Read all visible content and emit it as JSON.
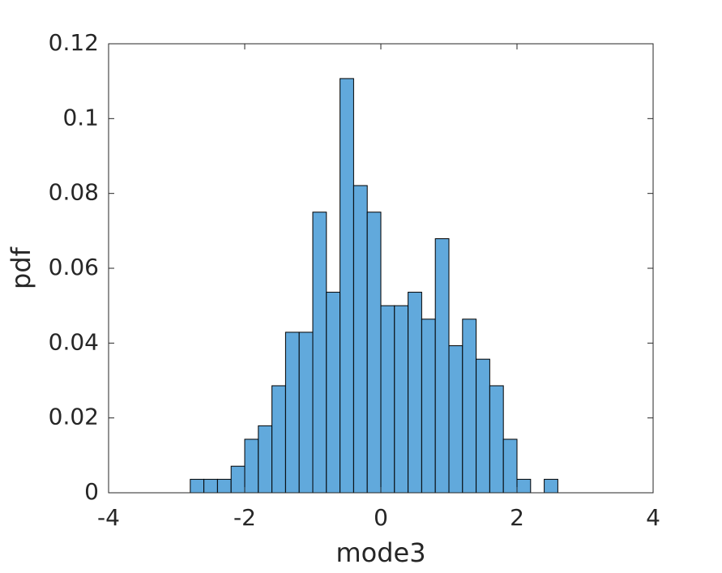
{
  "chart_data": {
    "type": "histogram",
    "xlabel": "mode3",
    "ylabel": "pdf",
    "bins": [
      -3.0,
      -2.8,
      -2.6,
      -2.4,
      -2.2,
      -2.0,
      -1.8,
      -1.6,
      -1.4,
      -1.2,
      -1.0,
      -0.8,
      -0.6,
      -0.4,
      -0.2,
      0.0,
      0.2,
      0.4,
      0.6,
      0.8,
      1.0,
      1.2,
      1.4,
      1.6,
      1.8,
      2.0,
      2.2,
      2.4,
      2.6,
      2.8,
      3.0
    ],
    "values": [
      0,
      0.0036,
      0.0036,
      0.0036,
      0.0071,
      0.0143,
      0.0179,
      0.0286,
      0.0429,
      0.0429,
      0.075,
      0.0536,
      0.1107,
      0.0821,
      0.075,
      0.05,
      0.05,
      0.0536,
      0.0464,
      0.0679,
      0.0393,
      0.0464,
      0.0357,
      0.0286,
      0.0143,
      0.0036,
      0,
      0.0036,
      0,
      0
    ],
    "color": "#61a9dc",
    "xlim": [
      -4,
      4
    ],
    "xticks": [
      -4,
      -2,
      0,
      2,
      4
    ],
    "ylim": [
      0,
      0.12
    ],
    "yticks": [
      0,
      0.02,
      0.04,
      0.06,
      0.08,
      0.1,
      0.12
    ]
  }
}
